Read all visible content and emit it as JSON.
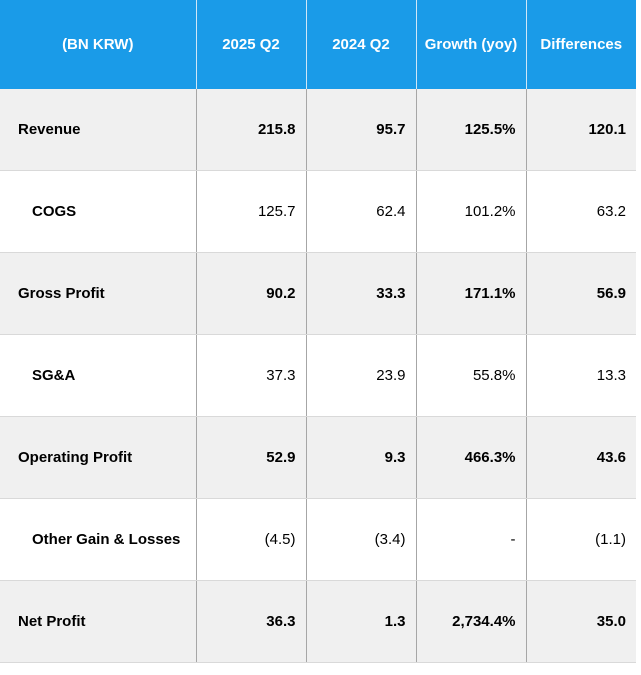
{
  "table": {
    "header": [
      "(BN KRW)",
      "2025 Q2",
      "2024 Q2",
      "Growth (yoy)",
      "Differences"
    ],
    "rows": [
      [
        "Revenue",
        "215.8",
        "95.7",
        "125.5%",
        "120.1"
      ],
      [
        "COGS",
        "125.7",
        "62.4",
        "101.2%",
        "63.2"
      ],
      [
        "Gross Profit",
        "90.2",
        "33.3",
        "171.1%",
        "56.9"
      ],
      [
        "SG&A",
        "37.3",
        "23.9",
        "55.8%",
        "13.3"
      ],
      [
        "Operating Profit",
        "52.9",
        "9.3",
        "466.3%",
        "43.6"
      ],
      [
        "Other Gain & Losses",
        "(4.5)",
        "(3.4)",
        "-",
        "(1.1)"
      ],
      [
        "Net Profit",
        "36.3",
        "1.3",
        "2,734.4%",
        "35.0"
      ]
    ]
  }
}
